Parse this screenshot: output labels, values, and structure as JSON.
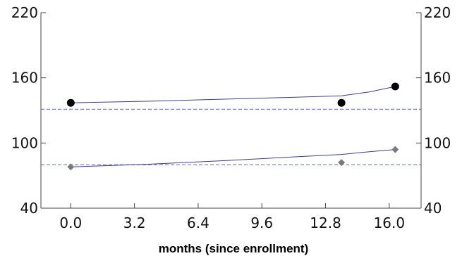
{
  "chart_data": {
    "type": "line",
    "xlabel": "months (since enrollment)",
    "ylabel": "",
    "xlim": [
      -1.5,
      17.6
    ],
    "ylim": [
      40,
      220
    ],
    "x_ticks": [
      "0.0",
      "3.2",
      "6.4",
      "9.6",
      "12.8",
      "16.0"
    ],
    "x_tick_values": [
      0.0,
      3.2,
      6.4,
      9.6,
      12.8,
      16.0
    ],
    "y_ticks": [
      "40",
      "100",
      "160",
      "220"
    ],
    "y_tick_values": [
      40,
      100,
      160,
      220
    ],
    "reference_lines": [
      {
        "y": 131,
        "color": "#8080dd",
        "style": "dashed"
      },
      {
        "y": 80,
        "color": "#8080dd",
        "style": "dashed"
      }
    ],
    "series": [
      {
        "marker": "circle",
        "color": "#000000",
        "points": [
          {
            "x": 0.0,
            "y": 137
          },
          {
            "x": 13.6,
            "y": 137
          },
          {
            "x": 16.3,
            "y": 152
          }
        ],
        "trend": [
          [
            0.0,
            137
          ],
          [
            4.0,
            138.5
          ],
          [
            8.0,
            140.5
          ],
          [
            11.0,
            142
          ],
          [
            13.6,
            143.5
          ],
          [
            15.0,
            147
          ],
          [
            16.3,
            152
          ]
        ],
        "trend_color": "#3a3a9a"
      },
      {
        "marker": "diamond",
        "color": "#7a7a7a",
        "points": [
          {
            "x": 0.0,
            "y": 78
          },
          {
            "x": 13.6,
            "y": 82
          },
          {
            "x": 16.3,
            "y": 94
          }
        ],
        "trend": [
          [
            0.0,
            78
          ],
          [
            4.0,
            80.5
          ],
          [
            8.0,
            84
          ],
          [
            11.0,
            87
          ],
          [
            13.6,
            89.5
          ],
          [
            15.0,
            92
          ],
          [
            16.3,
            94
          ]
        ],
        "trend_color": "#3a3a9a"
      }
    ]
  }
}
